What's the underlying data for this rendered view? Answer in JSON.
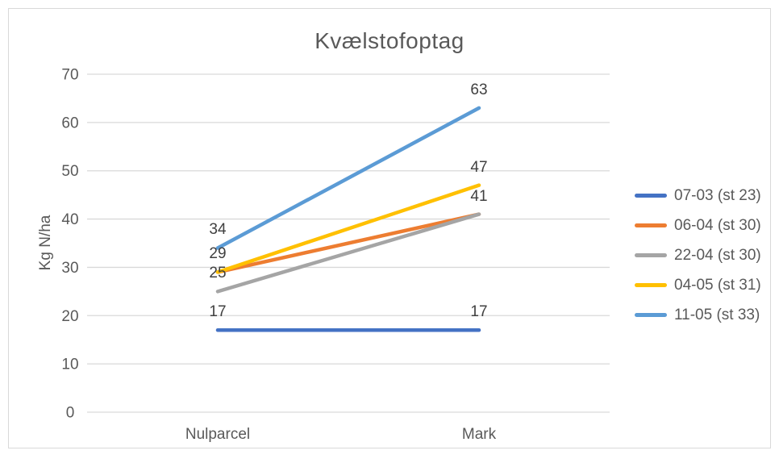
{
  "chart_data": {
    "type": "line",
    "title": "Kvælstofoptag",
    "categories": [
      "Nulparcel",
      "Mark"
    ],
    "series": [
      {
        "name": "07-03 (st 23)",
        "values": [
          17,
          17
        ],
        "color": "#4472C4"
      },
      {
        "name": "06-04 (st 30)",
        "values": [
          29,
          41
        ],
        "color": "#ED7D31"
      },
      {
        "name": "22-04 (st 30)",
        "values": [
          25,
          41
        ],
        "color": "#A5A5A5"
      },
      {
        "name": "04-05 (st 31)",
        "values": [
          29,
          47
        ],
        "color": "#FFC000"
      },
      {
        "name": "11-05 (st 33)",
        "values": [
          34,
          63
        ],
        "color": "#5B9BD5"
      }
    ],
    "xlabel": "",
    "ylabel": "Kg N/ha",
    "ylim": [
      0,
      70
    ],
    "ytick_step": 10,
    "yticks": [
      0,
      10,
      20,
      30,
      40,
      50,
      60,
      70
    ],
    "grid": true,
    "legend_position": "right",
    "data_labels": true,
    "data_labels_visible": {
      "Nulparcel": [
        34,
        29,
        25,
        17
      ],
      "Mark": [
        63,
        47,
        41,
        17
      ]
    },
    "colors": {
      "grid": "#D9D9D9",
      "frame_border": "#D9D9D9",
      "axis_text": "#595959",
      "title_text": "#595959",
      "data_label_text": "#404040",
      "background": "#FFFFFF"
    }
  }
}
